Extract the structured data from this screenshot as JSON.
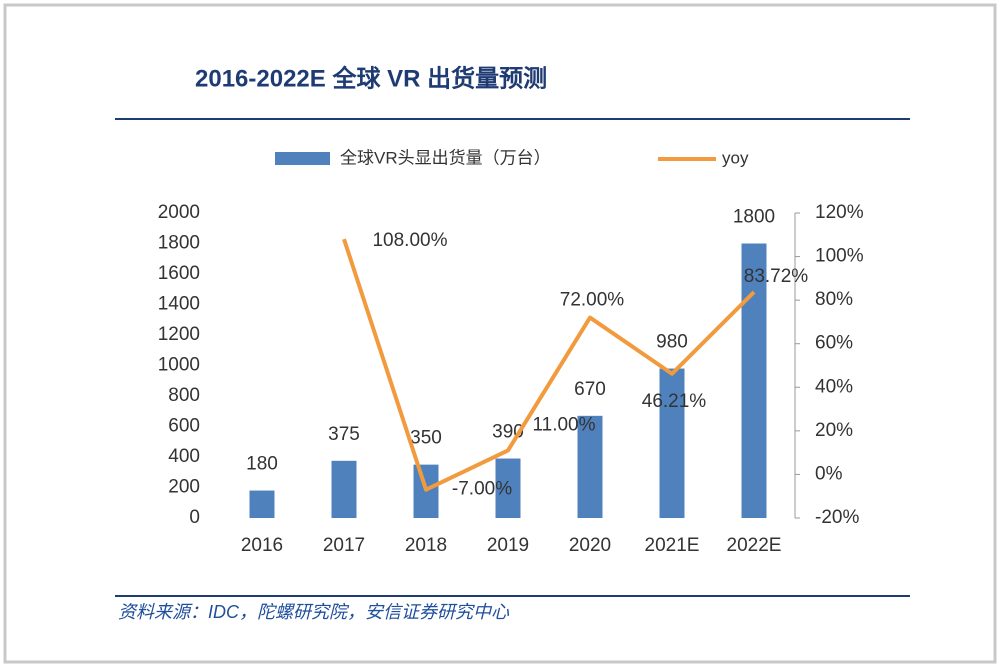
{
  "chart_data": {
    "type": "bar-line",
    "title": "2016-2022E 全球 VR 出货量预测",
    "source": "资料来源：IDC，陀螺研究院，安信证券研究中心",
    "categories": [
      "2016",
      "2017",
      "2018",
      "2019",
      "2020",
      "2021E",
      "2022E"
    ],
    "series": [
      {
        "name": "全球VR头显出货量（万台）",
        "color": "#4f81bd",
        "values": [
          180,
          375,
          350,
          390,
          670,
          980,
          1800
        ]
      },
      {
        "name": "yoy",
        "color": "#f29a3e",
        "axis": "y2",
        "values": [
          null,
          108,
          -7,
          11,
          72,
          46.21,
          83.72
        ],
        "value_labels": [
          null,
          "108.00%",
          "-7.00%",
          "11.00%",
          "72.00%",
          "46.21%",
          "83.72%"
        ]
      }
    ],
    "ylim": [
      0,
      2000
    ],
    "yticks": [
      0,
      200,
      400,
      600,
      800,
      1000,
      1200,
      1400,
      1600,
      1800,
      2000
    ],
    "y2lim": [
      -20,
      120
    ],
    "y2ticks": [
      {
        "value": -20,
        "label": "-20%"
      },
      {
        "value": 0,
        "label": "0%"
      },
      {
        "value": 20,
        "label": "20%"
      },
      {
        "value": 40,
        "label": "40%"
      },
      {
        "value": 60,
        "label": "60%"
      },
      {
        "value": 80,
        "label": "80%"
      },
      {
        "value": 100,
        "label": "100%"
      },
      {
        "value": 120,
        "label": "120%"
      }
    ]
  }
}
